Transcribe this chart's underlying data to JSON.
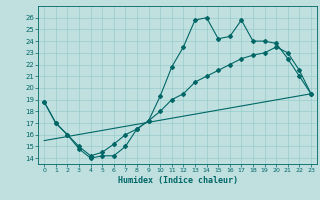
{
  "xlabel": "Humidex (Indice chaleur)",
  "bg_color": "#c0e0e0",
  "line_color": "#006666",
  "grid_color": "#99cccc",
  "xlim": [
    -0.5,
    23.5
  ],
  "ylim": [
    13.5,
    27
  ],
  "xticks": [
    0,
    1,
    2,
    3,
    4,
    5,
    6,
    7,
    8,
    9,
    10,
    11,
    12,
    13,
    14,
    15,
    16,
    17,
    18,
    19,
    20,
    21,
    22,
    23
  ],
  "yticks": [
    14,
    15,
    16,
    17,
    18,
    19,
    20,
    21,
    22,
    23,
    24,
    25,
    26
  ],
  "series1_x": [
    0,
    1,
    2,
    3,
    4,
    5,
    6,
    7,
    8,
    9,
    10,
    11,
    12,
    13,
    14,
    15,
    16,
    17,
    18,
    19,
    20,
    21,
    22,
    23
  ],
  "series1_y": [
    18.8,
    17.0,
    16.0,
    14.8,
    14.0,
    14.2,
    14.2,
    15.0,
    16.5,
    17.2,
    19.3,
    21.8,
    23.5,
    25.8,
    26.0,
    24.2,
    24.4,
    25.8,
    24.0,
    24.0,
    23.8,
    22.5,
    21.0,
    19.5
  ],
  "series2_x": [
    0,
    1,
    2,
    3,
    4,
    5,
    6,
    7,
    8,
    9,
    10,
    11,
    12,
    13,
    14,
    15,
    16,
    17,
    18,
    19,
    20,
    21,
    22,
    23
  ],
  "series2_y": [
    18.8,
    17.0,
    16.0,
    15.0,
    14.2,
    14.5,
    15.2,
    16.0,
    16.5,
    17.2,
    18.0,
    19.0,
    19.5,
    20.5,
    21.0,
    21.5,
    22.0,
    22.5,
    22.8,
    23.0,
    23.5,
    23.0,
    21.5,
    19.5
  ],
  "series3_x": [
    0,
    23
  ],
  "series3_y": [
    15.5,
    19.5
  ]
}
